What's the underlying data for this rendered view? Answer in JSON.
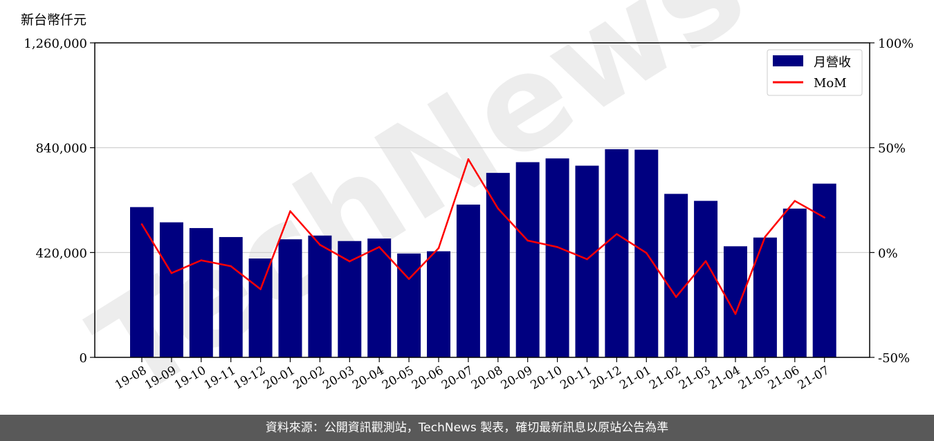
{
  "unit_label": "新台幣仟元",
  "footer_text": "資料來源：公開資訊觀測站，TechNews 製表，確切最新訊息以原站公告為準",
  "watermark_text": "TechNews",
  "colors": {
    "bar": "#000080",
    "line": "#ff0000",
    "grid": "#cccccc",
    "footer_bg": "#595959"
  },
  "legend": {
    "bar_label": "月營收",
    "line_label": "MoM",
    "placement": "top-right"
  },
  "chart_data": {
    "type": "bar",
    "categories": [
      "19-08",
      "19-09",
      "19-10",
      "19-11",
      "19-12",
      "20-01",
      "20-02",
      "20-03",
      "20-04",
      "20-05",
      "20-06",
      "20-07",
      "20-08",
      "20-09",
      "20-10",
      "20-11",
      "20-12",
      "21-01",
      "21-02",
      "21-03",
      "21-04",
      "21-05",
      "21-06",
      "21-07"
    ],
    "series": [
      {
        "name": "月營收",
        "type": "bar",
        "axis": "left",
        "values": [
          602000,
          541000,
          518000,
          482000,
          396000,
          473000,
          488000,
          466000,
          476000,
          416000,
          425000,
          612000,
          739000,
          782000,
          797000,
          768000,
          834000,
          832000,
          655000,
          627000,
          445000,
          480000,
          596000,
          696000
        ]
      },
      {
        "name": "MoM",
        "type": "line",
        "axis": "right",
        "values": [
          13.5,
          -9.8,
          -3.7,
          -6.5,
          -17.5,
          19.7,
          3.7,
          -4.2,
          2.6,
          -12.6,
          2.1,
          44.5,
          21.0,
          5.7,
          2.6,
          -3.2,
          8.8,
          -0.2,
          -21.2,
          -4.1,
          -29.3,
          7.5,
          24.6,
          16.7
        ]
      }
    ],
    "y_left": {
      "ylim": [
        0,
        1260000
      ],
      "ticks": [
        0,
        420000,
        840000,
        1260000
      ],
      "tick_labels": [
        "0",
        "420,000",
        "840,000",
        "1,260,000"
      ]
    },
    "y_right": {
      "ylim": [
        -50,
        100
      ],
      "ticks": [
        -50,
        0,
        50,
        100
      ],
      "tick_labels": [
        "-50%",
        "0%",
        "50%",
        "100%"
      ]
    },
    "grid": "horizontal",
    "title": "",
    "xlabel": "",
    "ylabel": ""
  }
}
